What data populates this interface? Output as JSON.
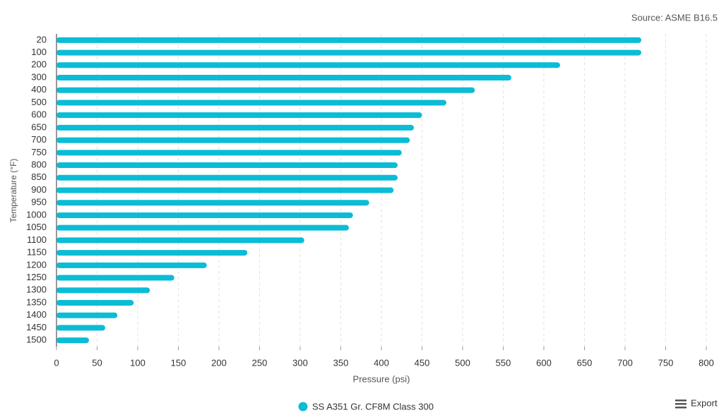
{
  "chart_data": {
    "type": "bar",
    "orientation": "horizontal",
    "subtitle": "Source: ASME B16.5",
    "x_label": "Pressure (psi)",
    "y_label": "Temperature (°F)",
    "categories": [
      "20",
      "100",
      "200",
      "300",
      "400",
      "500",
      "600",
      "650",
      "700",
      "750",
      "800",
      "850",
      "900",
      "950",
      "1000",
      "1050",
      "1100",
      "1150",
      "1200",
      "1250",
      "1300",
      "1350",
      "1400",
      "1450",
      "1500"
    ],
    "series": [
      {
        "name": "SS A351 Gr. CF8M Class 300",
        "color": "#0bbcd6",
        "values": [
          720,
          720,
          620,
          560,
          515,
          480,
          450,
          440,
          435,
          425,
          420,
          420,
          415,
          385,
          365,
          360,
          305,
          235,
          185,
          145,
          115,
          95,
          75,
          60,
          40
        ]
      }
    ],
    "xlim": [
      0,
      800
    ],
    "xticks": [
      0,
      50,
      100,
      150,
      200,
      250,
      300,
      350,
      400,
      450,
      500,
      550,
      600,
      650,
      700,
      750,
      800
    ],
    "grid": true,
    "legend": "bottom",
    "export_label": "Export"
  }
}
